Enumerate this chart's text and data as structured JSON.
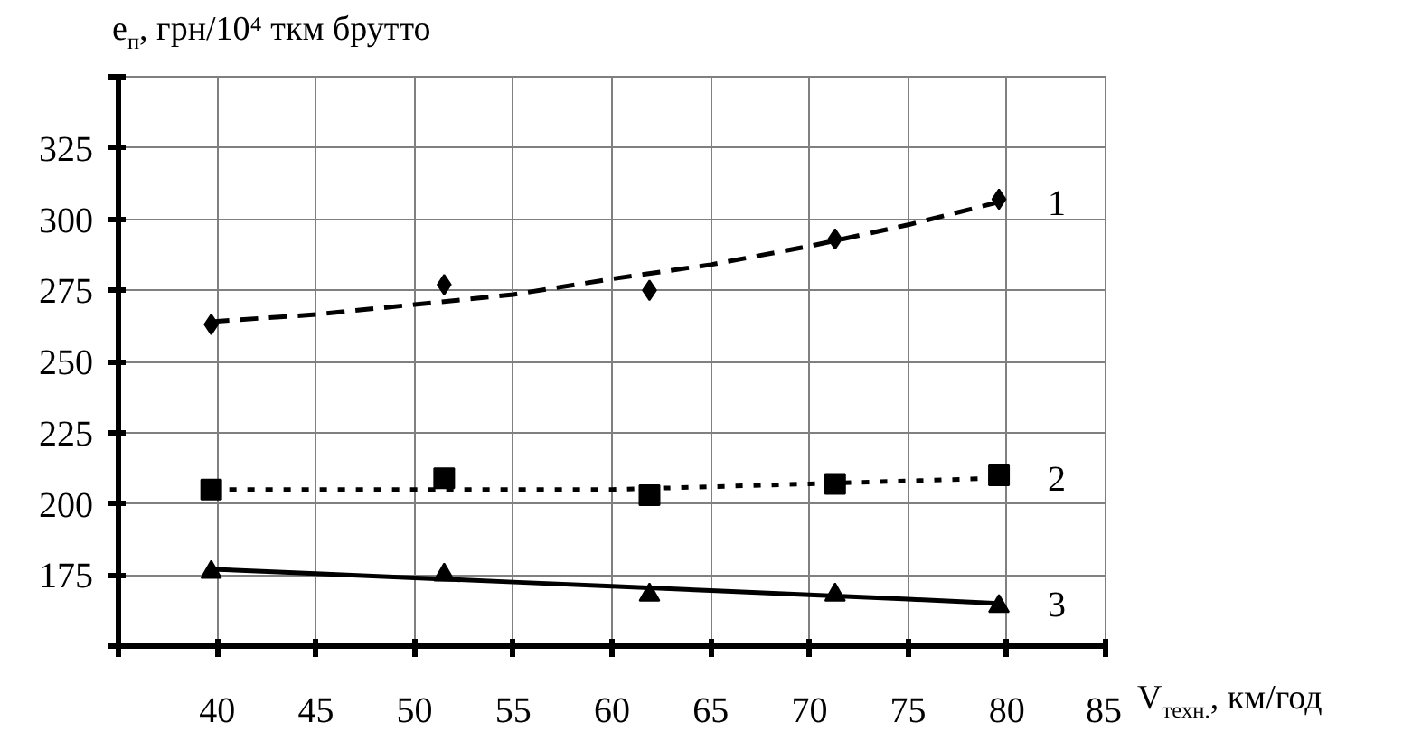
{
  "chart_data": {
    "type": "scatter",
    "xlabel": "V$_{техн.}$, км/год",
    "ylabel": "e$_{п}$, грн/10⁴ ткм брутто",
    "xlim": [
      35,
      85
    ],
    "ylim": [
      150,
      350
    ],
    "xticks": [
      {
        "value": 35,
        "label": null
      },
      40,
      45,
      50,
      55,
      60,
      65,
      70,
      75,
      80,
      85
    ],
    "yticks": [
      {
        "value": 150,
        "label": null
      },
      175,
      200,
      225,
      250,
      275,
      300,
      325,
      {
        "value": 350,
        "label": null
      }
    ],
    "grid": true,
    "series": [
      {
        "marker": "diamond",
        "color": "#000000",
        "x": [
          39.7,
          51.5,
          61.9,
          71.3,
          79.6
        ],
        "values": [
          263,
          277,
          275,
          293,
          307
        ]
      },
      {
        "marker": "square",
        "color": "#000000",
        "x": [
          39.7,
          51.5,
          61.9,
          71.3,
          79.6
        ],
        "values": [
          205,
          209,
          203,
          207,
          210
        ]
      },
      {
        "marker": "triangle",
        "color": "#000000",
        "x": [
          39.7,
          51.5,
          61.9,
          71.3,
          79.6
        ],
        "values": [
          176,
          175,
          168,
          168,
          164
        ]
      },
      {
        "type": "line",
        "name": "1",
        "line_style": "dashed",
        "color": "#000000",
        "x": [
          39.7,
          45,
          50,
          55,
          60,
          65,
          70,
          75,
          79.6
        ],
        "values": [
          264,
          266.5,
          270,
          273.5,
          279,
          284,
          290.5,
          298,
          306
        ]
      },
      {
        "type": "line",
        "name": "2",
        "line_style": "dotted",
        "color": "#000000",
        "x": [
          39.7,
          50,
          60,
          65,
          70,
          79.6
        ],
        "values": [
          205,
          205,
          205,
          206,
          207,
          209
        ]
      },
      {
        "type": "line",
        "name": "3",
        "line_style": "solid",
        "color": "#000000",
        "x": [
          39.7,
          45,
          50,
          55,
          60,
          65,
          70,
          75,
          79.6
        ],
        "values": [
          177,
          175.5,
          174,
          172.5,
          171,
          169.5,
          168,
          166.5,
          165
        ]
      }
    ]
  }
}
